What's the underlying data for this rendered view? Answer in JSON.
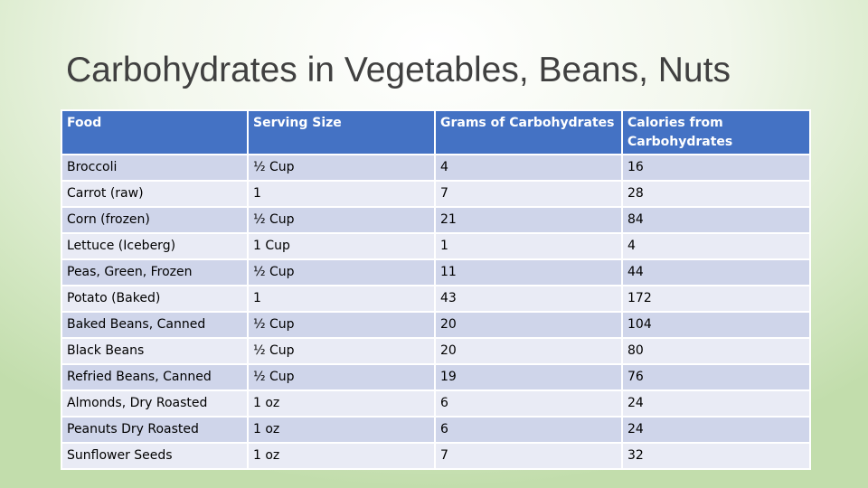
{
  "title": "Carbohydrates in Vegetables, Beans, Nuts",
  "table": {
    "header": [
      "Food",
      "Serving Size",
      "Grams of Carbohydrates",
      "Calories from Carbohydrates"
    ],
    "rows": [
      [
        "Broccoli",
        "½ Cup",
        4,
        16
      ],
      [
        "Carrot (raw)",
        "1",
        7,
        28
      ],
      [
        "Corn (frozen)",
        "½ Cup",
        21,
        84
      ],
      [
        "Lettuce (Iceberg)",
        "1 Cup",
        1,
        4
      ],
      [
        "Peas, Green, Frozen",
        "½ Cup",
        11,
        44
      ],
      [
        "Potato (Baked)",
        "1",
        43,
        172
      ],
      [
        "Baked Beans, Canned",
        "½ Cup",
        20,
        104
      ],
      [
        "Black Beans",
        "½ Cup",
        20,
        80
      ],
      [
        "Refried Beans, Canned",
        "½ Cup",
        19,
        76
      ],
      [
        "Almonds, Dry Roasted",
        "1 oz",
        6,
        24
      ],
      [
        "Peanuts Dry Roasted",
        "1 oz",
        6,
        24
      ],
      [
        "Sunflower Seeds",
        "1 oz",
        7,
        32
      ]
    ]
  }
}
